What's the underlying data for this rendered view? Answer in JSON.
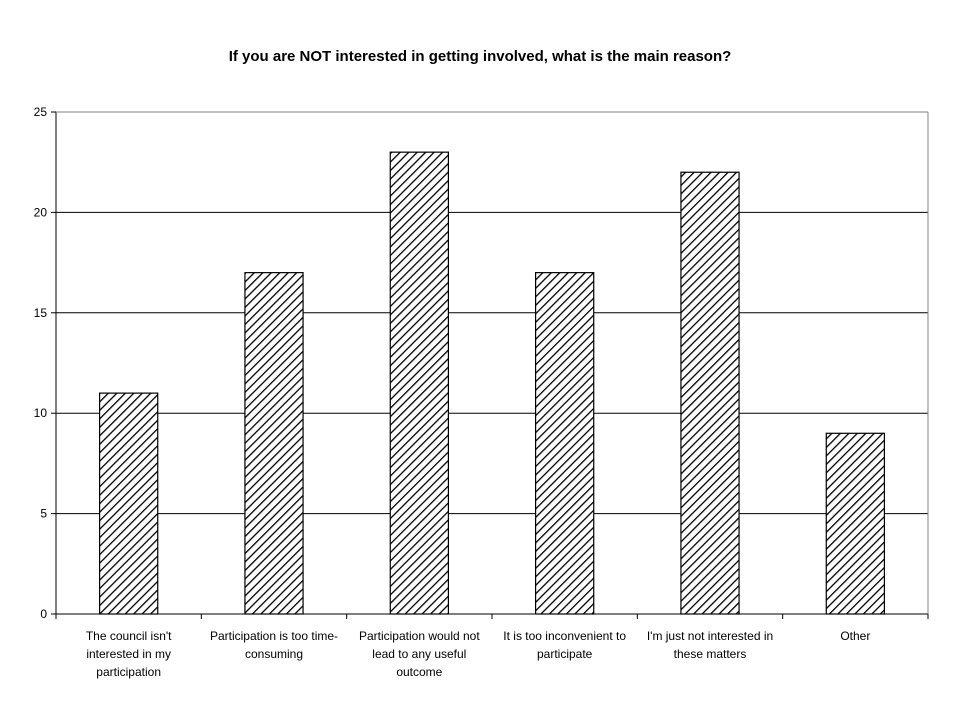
{
  "chart_data": {
    "type": "bar",
    "title": "If you are NOT interested in getting involved, what is the main reason?",
    "xlabel": "",
    "ylabel": "",
    "ylim": [
      0,
      25
    ],
    "yticks": [
      0,
      5,
      10,
      15,
      20,
      25
    ],
    "grid": true,
    "categories": [
      [
        "The council isn't",
        "interested in my",
        "participation"
      ],
      [
        "Participation is too time-",
        "consuming"
      ],
      [
        "Participation would not",
        "lead to any useful",
        "outcome"
      ],
      [
        "It is too inconvenient to",
        "participate"
      ],
      [
        "I'm just not interested in",
        "these matters"
      ],
      [
        "Other"
      ]
    ],
    "values": [
      11,
      17,
      23,
      17,
      22,
      9
    ],
    "bar_fill": "hatched",
    "bar_color": "#000000",
    "background": "#ffffff"
  }
}
